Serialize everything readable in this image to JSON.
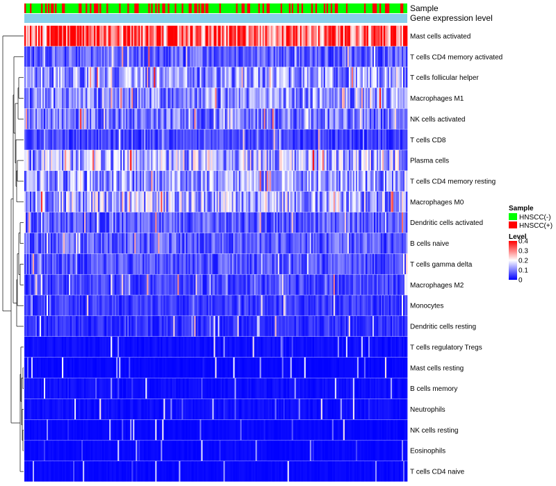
{
  "chart_data": {
    "type": "heatmap",
    "title": "",
    "annotation_rows": [
      {
        "name": "Sample",
        "kind": "categorical"
      },
      {
        "name": "Gene expression level",
        "kind": "constant",
        "color": "#87CEEB"
      }
    ],
    "rows": [
      "Mast cells activated",
      "T cells CD4 memory activated",
      "T cells follicular helper",
      "Macrophages M1",
      "NK cells activated",
      "T cells CD8",
      "Plasma cells",
      "T cells CD4 memory resting",
      "Macrophages M0",
      "Dendritic cells activated",
      "B cells naive",
      "T cells gamma delta",
      "Macrophages M2",
      "Monocytes",
      "Dendritic cells resting",
      "T cells regulatory  Tregs",
      "Mast cells resting",
      "B cells memory",
      "Neutrophils",
      "NK cells resting",
      "Eosinophils",
      "T cells CD4 naive"
    ],
    "row_mean_level": [
      0.31,
      0.08,
      0.13,
      0.12,
      0.1,
      0.06,
      0.15,
      0.13,
      0.15,
      0.08,
      0.08,
      0.07,
      0.06,
      0.05,
      0.04,
      0.02,
      0.01,
      0.02,
      0.02,
      0.01,
      0.01,
      0.01
    ],
    "n_samples": 275,
    "legend": {
      "sample": {
        "title": "Sample",
        "entries": [
          {
            "label": "HNSCC(-)",
            "color": "#00FF00"
          },
          {
            "label": "HNSCC(+)",
            "color": "#FF0000"
          }
        ]
      },
      "level": {
        "title": "Level",
        "ticks": [
          "0.4",
          "0.3",
          "0.2",
          "0.1",
          "0"
        ],
        "range": [
          0,
          0.4
        ],
        "low_color": "#0000FF",
        "mid_color": "#FFFFFF",
        "high_color": "#FF0000"
      }
    },
    "legend_placement": "right",
    "dendrogram": "rows"
  }
}
